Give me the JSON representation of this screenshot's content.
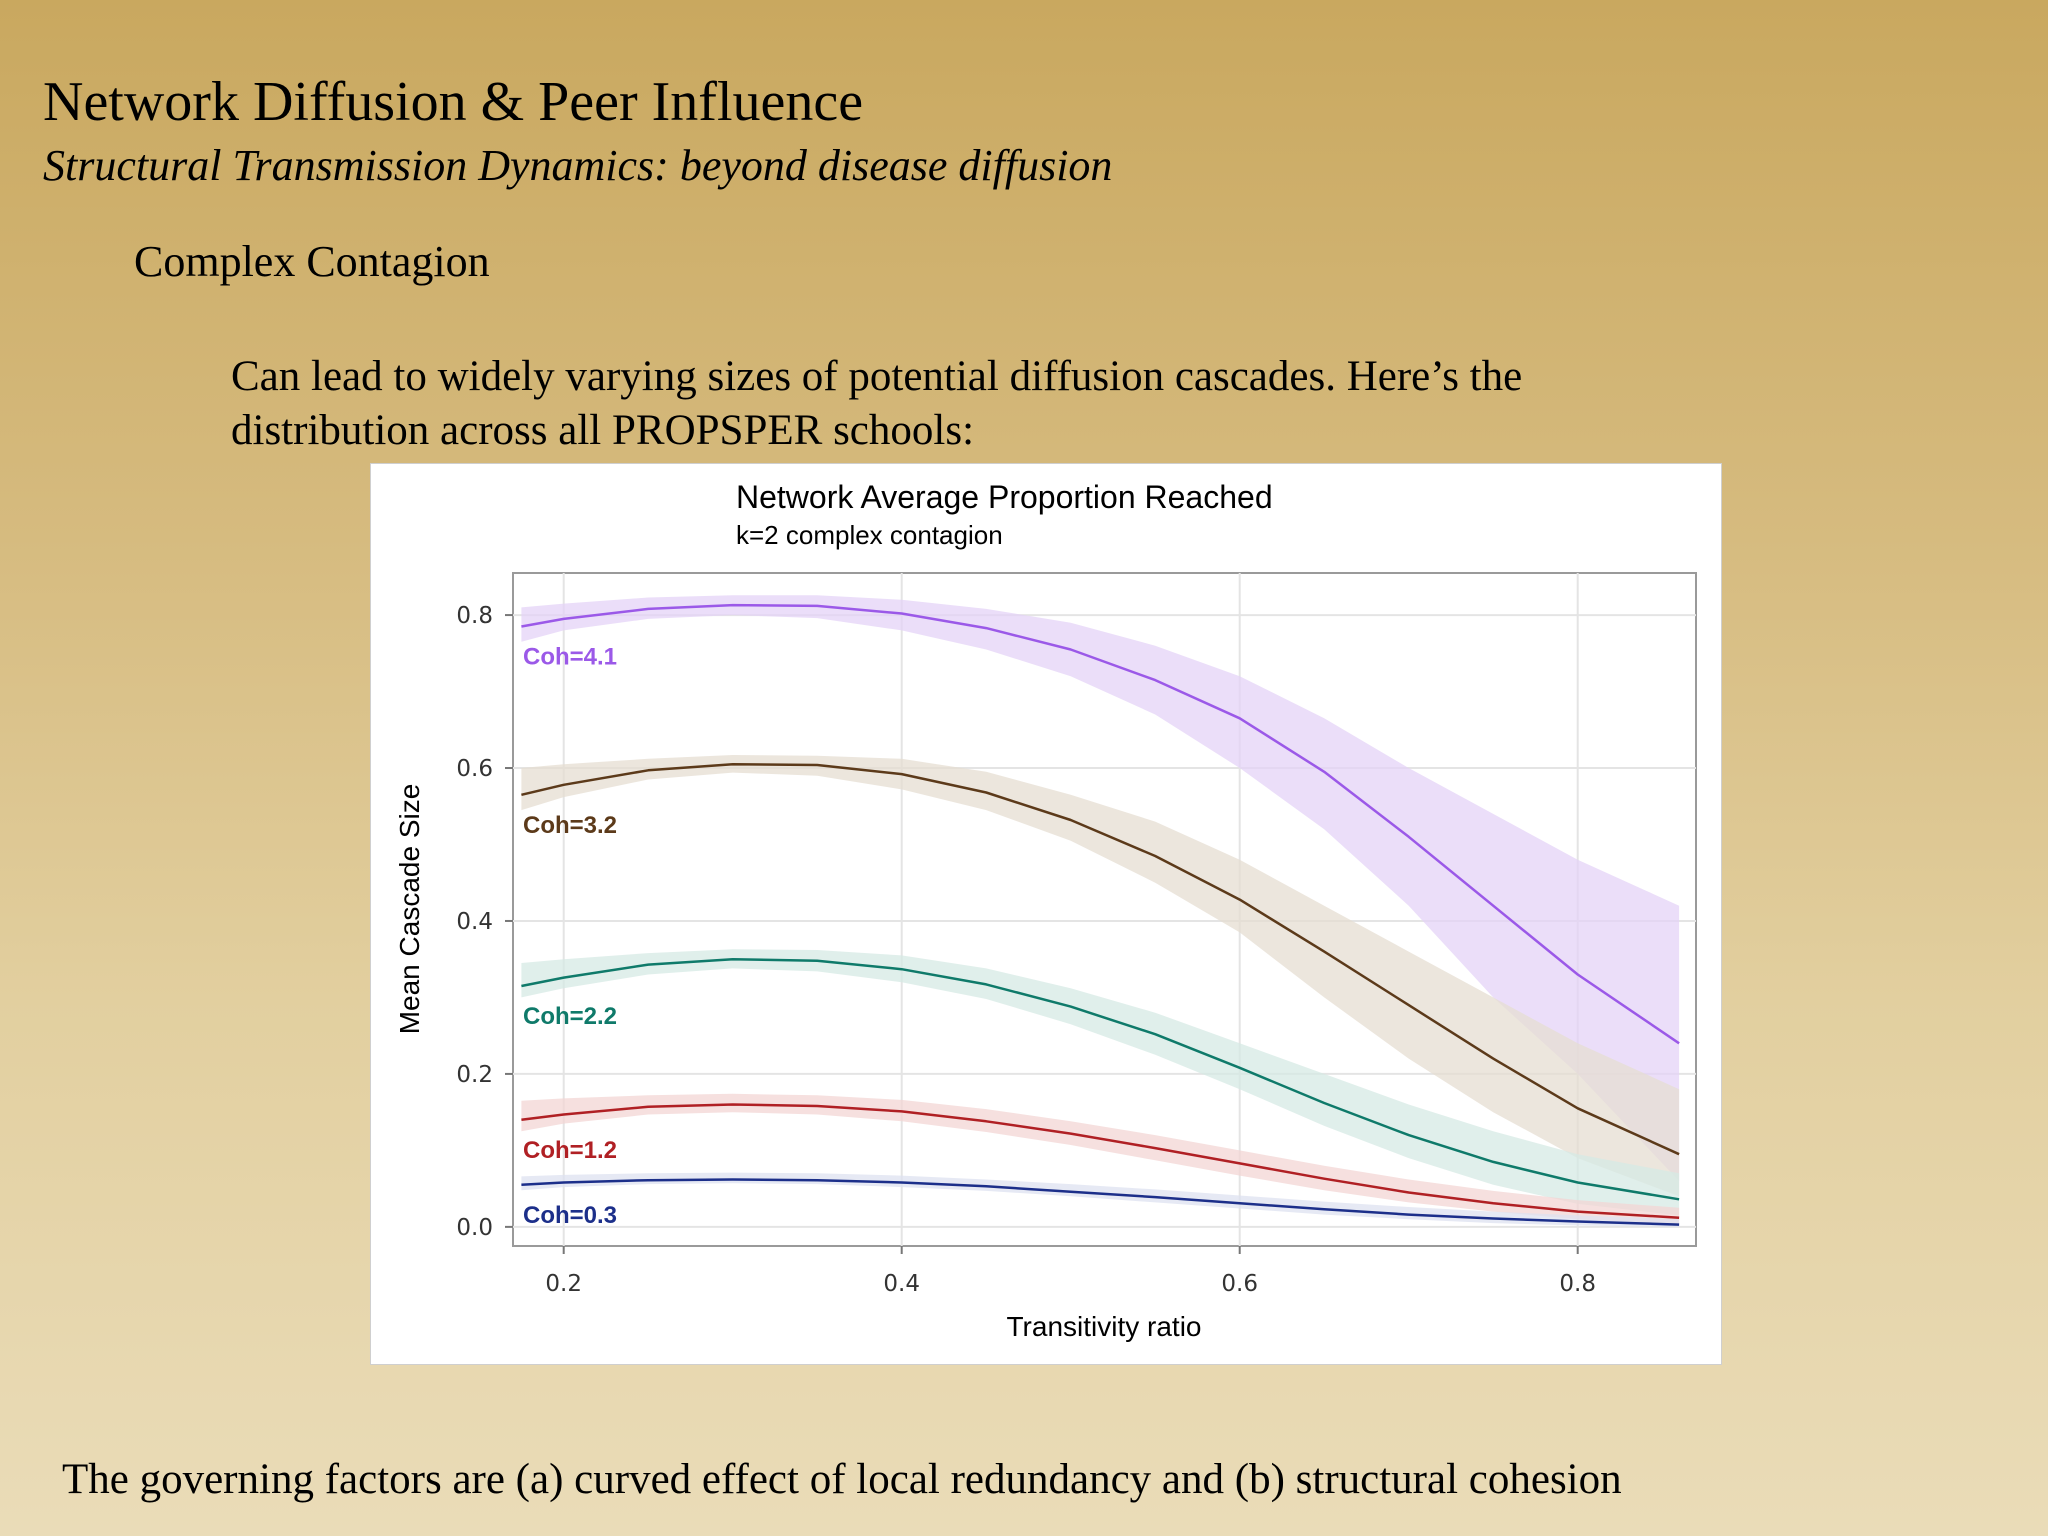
{
  "slide": {
    "title": "Network Diffusion & Peer Influence",
    "subtitle": "Structural Transmission Dynamics: beyond disease diffusion",
    "heading": "Complex Contagion",
    "body": "Can lead to widely varying sizes of potential diffusion cascades.  Here’s the distribution across all PROPSPER schools:",
    "footer": "The governing factors are (a) curved effect of local redundancy and (b) structural cohesion"
  },
  "chart_data": {
    "type": "line",
    "title": "Network Average Proportion Reached",
    "subtitle": "k=2 complex contagion",
    "xlabel": "Transitivity ratio",
    "ylabel": "Mean Cascade Size",
    "xlim": [
      0.17,
      0.87
    ],
    "ylim": [
      -0.025,
      0.855
    ],
    "xticks": [
      {
        "value": 0.2,
        "label": "0.2"
      },
      {
        "value": 0.4,
        "label": "0.4"
      },
      {
        "value": 0.6,
        "label": "0.6"
      },
      {
        "value": 0.8,
        "label": "0.8"
      }
    ],
    "yticks": [
      {
        "value": 0.0,
        "label": "0.0"
      },
      {
        "value": 0.2,
        "label": "0.2"
      },
      {
        "value": 0.4,
        "label": "0.4"
      },
      {
        "value": 0.6,
        "label": "0.6"
      },
      {
        "value": 0.8,
        "label": "0.8"
      }
    ],
    "grid": true,
    "legend": "inline labels at left",
    "series": [
      {
        "name": "Coh=4.1",
        "color": "#9b59e8",
        "band_color": "#e4d3f7",
        "x": [
          0.175,
          0.2,
          0.25,
          0.3,
          0.35,
          0.4,
          0.45,
          0.5,
          0.55,
          0.6,
          0.65,
          0.7,
          0.75,
          0.8,
          0.86
        ],
        "y": [
          0.785,
          0.795,
          0.808,
          0.813,
          0.812,
          0.802,
          0.783,
          0.755,
          0.715,
          0.665,
          0.595,
          0.51,
          0.42,
          0.33,
          0.24
        ],
        "lower": [
          0.765,
          0.78,
          0.795,
          0.8,
          0.796,
          0.78,
          0.755,
          0.72,
          0.67,
          0.6,
          0.52,
          0.42,
          0.3,
          0.2,
          0.06
        ],
        "upper": [
          0.81,
          0.815,
          0.823,
          0.826,
          0.826,
          0.82,
          0.808,
          0.79,
          0.76,
          0.72,
          0.665,
          0.6,
          0.54,
          0.48,
          0.42
        ]
      },
      {
        "name": "Coh=3.2",
        "color": "#5c3a1a",
        "band_color": "#e6ddd2",
        "x": [
          0.175,
          0.2,
          0.25,
          0.3,
          0.35,
          0.4,
          0.45,
          0.5,
          0.55,
          0.6,
          0.65,
          0.7,
          0.75,
          0.8,
          0.86
        ],
        "y": [
          0.565,
          0.578,
          0.597,
          0.605,
          0.604,
          0.592,
          0.568,
          0.532,
          0.485,
          0.428,
          0.36,
          0.29,
          0.22,
          0.155,
          0.095
        ],
        "lower": [
          0.545,
          0.562,
          0.585,
          0.594,
          0.59,
          0.572,
          0.545,
          0.505,
          0.45,
          0.385,
          0.3,
          0.22,
          0.15,
          0.09,
          0.04
        ],
        "upper": [
          0.6,
          0.605,
          0.612,
          0.617,
          0.616,
          0.612,
          0.595,
          0.565,
          0.53,
          0.48,
          0.42,
          0.36,
          0.3,
          0.24,
          0.18
        ]
      },
      {
        "name": "Coh=2.2",
        "color": "#0f7a6a",
        "band_color": "#d6eae4",
        "x": [
          0.175,
          0.2,
          0.25,
          0.3,
          0.35,
          0.4,
          0.45,
          0.5,
          0.55,
          0.6,
          0.65,
          0.7,
          0.75,
          0.8,
          0.86
        ],
        "y": [
          0.315,
          0.326,
          0.343,
          0.35,
          0.348,
          0.337,
          0.317,
          0.288,
          0.252,
          0.208,
          0.162,
          0.12,
          0.085,
          0.058,
          0.036
        ],
        "lower": [
          0.3,
          0.312,
          0.33,
          0.338,
          0.334,
          0.32,
          0.298,
          0.265,
          0.225,
          0.18,
          0.132,
          0.09,
          0.055,
          0.03,
          0.015
        ],
        "upper": [
          0.345,
          0.35,
          0.358,
          0.363,
          0.362,
          0.355,
          0.338,
          0.312,
          0.28,
          0.24,
          0.2,
          0.16,
          0.125,
          0.095,
          0.07
        ]
      },
      {
        "name": "Coh=1.2",
        "color": "#b02024",
        "band_color": "#f3d6d4",
        "x": [
          0.175,
          0.2,
          0.25,
          0.3,
          0.35,
          0.4,
          0.45,
          0.5,
          0.55,
          0.6,
          0.65,
          0.7,
          0.75,
          0.8,
          0.86
        ],
        "y": [
          0.14,
          0.147,
          0.157,
          0.16,
          0.158,
          0.151,
          0.138,
          0.122,
          0.103,
          0.083,
          0.063,
          0.045,
          0.031,
          0.02,
          0.012
        ],
        "lower": [
          0.125,
          0.135,
          0.147,
          0.15,
          0.147,
          0.138,
          0.124,
          0.107,
          0.087,
          0.067,
          0.048,
          0.032,
          0.02,
          0.01,
          0.004
        ],
        "upper": [
          0.165,
          0.168,
          0.172,
          0.174,
          0.172,
          0.166,
          0.154,
          0.138,
          0.12,
          0.1,
          0.08,
          0.062,
          0.047,
          0.035,
          0.025
        ]
      },
      {
        "name": "Coh=0.3",
        "color": "#1c2f8a",
        "band_color": "#dde1f0",
        "x": [
          0.175,
          0.2,
          0.25,
          0.3,
          0.35,
          0.4,
          0.45,
          0.5,
          0.55,
          0.6,
          0.65,
          0.7,
          0.75,
          0.8,
          0.86
        ],
        "y": [
          0.055,
          0.058,
          0.061,
          0.062,
          0.061,
          0.058,
          0.053,
          0.046,
          0.039,
          0.031,
          0.023,
          0.016,
          0.011,
          0.007,
          0.003
        ],
        "lower": [
          0.048,
          0.052,
          0.056,
          0.057,
          0.056,
          0.052,
          0.047,
          0.04,
          0.032,
          0.024,
          0.016,
          0.01,
          0.005,
          0.002,
          0.0
        ],
        "upper": [
          0.066,
          0.068,
          0.07,
          0.071,
          0.07,
          0.067,
          0.062,
          0.056,
          0.049,
          0.041,
          0.033,
          0.026,
          0.02,
          0.015,
          0.01
        ]
      }
    ]
  }
}
